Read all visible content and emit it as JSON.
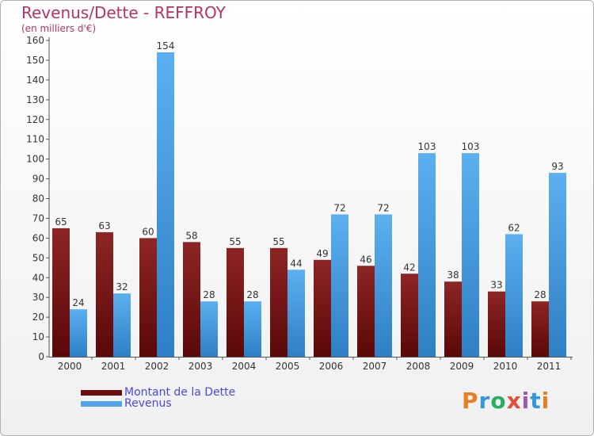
{
  "header": {
    "title": "Revenus/Dette - REFFROY",
    "subtitle": "(en milliers d'€)"
  },
  "legend": [
    {
      "label": "Montant de la Dette",
      "color": "#7a1212"
    },
    {
      "label": "Revenus",
      "color": "#4fa3e6"
    }
  ],
  "logo": {
    "text": "Proxiti"
  },
  "chart_data": {
    "type": "bar",
    "categories": [
      "2000",
      "2001",
      "2002",
      "2003",
      "2004",
      "2005",
      "2006",
      "2007",
      "2008",
      "2009",
      "2010",
      "2011"
    ],
    "series": [
      {
        "name": "Montant de la Dette",
        "color": "#7a1212",
        "values": [
          65,
          63,
          60,
          58,
          55,
          55,
          49,
          46,
          42,
          38,
          33,
          28
        ]
      },
      {
        "name": "Revenus",
        "color": "#4fa3e6",
        "values": [
          24,
          32,
          154,
          28,
          28,
          44,
          72,
          72,
          103,
          103,
          62,
          93
        ]
      }
    ],
    "yticks": [
      0,
      10,
      20,
      30,
      40,
      50,
      60,
      70,
      80,
      90,
      100,
      110,
      120,
      130,
      140,
      150,
      160
    ],
    "ylim": [
      0,
      160
    ],
    "grid": false,
    "legend_position": "bottom-left"
  }
}
